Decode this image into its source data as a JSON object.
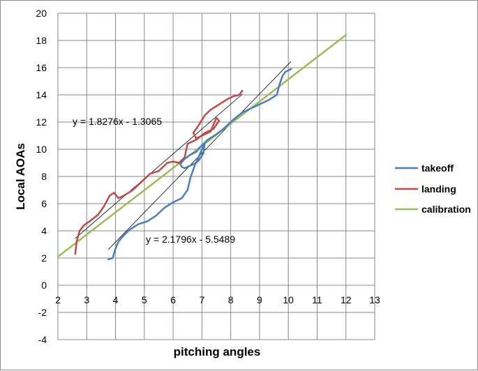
{
  "chart_data": {
    "type": "line",
    "title": "",
    "xlabel": "pitching angles",
    "ylabel": "Local AOAs",
    "xlim": [
      2,
      13
    ],
    "ylim": [
      -4,
      20
    ],
    "x_ticks": [
      2,
      3,
      4,
      5,
      6,
      7,
      8,
      9,
      10,
      11,
      12,
      13
    ],
    "y_ticks": [
      20,
      18,
      16,
      14,
      12,
      10,
      8,
      6,
      4,
      2,
      0,
      -2,
      -4
    ],
    "grid": true,
    "legend_position": "right",
    "series": [
      {
        "name": "takeoff",
        "color": "#4a7ebb",
        "points": [
          [
            3.75,
            1.9
          ],
          [
            3.9,
            2.0
          ],
          [
            4.0,
            2.7
          ],
          [
            4.1,
            3.2
          ],
          [
            4.3,
            3.7
          ],
          [
            4.5,
            4.1
          ],
          [
            4.8,
            4.5
          ],
          [
            5.1,
            4.7
          ],
          [
            5.4,
            5.1
          ],
          [
            5.7,
            5.7
          ],
          [
            6.0,
            6.1
          ],
          [
            6.3,
            6.4
          ],
          [
            6.5,
            7.0
          ],
          [
            6.6,
            7.9
          ],
          [
            6.75,
            8.8
          ],
          [
            6.9,
            9.5
          ],
          [
            7.0,
            10.0
          ],
          [
            7.1,
            10.5
          ],
          [
            7.05,
            9.7
          ],
          [
            6.9,
            9.2
          ],
          [
            6.8,
            9.0
          ],
          [
            6.6,
            8.8
          ],
          [
            6.4,
            8.6
          ],
          [
            6.3,
            8.7
          ],
          [
            6.25,
            8.9
          ],
          [
            6.4,
            9.3
          ],
          [
            6.6,
            9.6
          ],
          [
            6.8,
            9.8
          ],
          [
            7.0,
            10.3
          ],
          [
            7.2,
            10.7
          ],
          [
            7.5,
            11.1
          ],
          [
            7.8,
            11.6
          ],
          [
            8.1,
            12.2
          ],
          [
            8.4,
            12.7
          ],
          [
            8.7,
            13.0
          ],
          [
            9.0,
            13.3
          ],
          [
            9.3,
            13.6
          ],
          [
            9.6,
            14.0
          ],
          [
            9.7,
            14.8
          ],
          [
            9.8,
            15.4
          ],
          [
            9.9,
            15.7
          ],
          [
            10.1,
            15.9
          ]
        ]
      },
      {
        "name": "landing",
        "color": "#be4b48",
        "points": [
          [
            2.6,
            2.3
          ],
          [
            2.65,
            3.2
          ],
          [
            2.75,
            4.0
          ],
          [
            2.9,
            4.4
          ],
          [
            3.1,
            4.7
          ],
          [
            3.4,
            5.2
          ],
          [
            3.6,
            5.8
          ],
          [
            3.8,
            6.6
          ],
          [
            3.95,
            6.8
          ],
          [
            4.1,
            6.4
          ],
          [
            4.3,
            6.6
          ],
          [
            4.6,
            7.0
          ],
          [
            4.9,
            7.6
          ],
          [
            5.2,
            8.2
          ],
          [
            5.5,
            8.4
          ],
          [
            5.8,
            9.0
          ],
          [
            6.0,
            9.1
          ],
          [
            6.2,
            9.0
          ],
          [
            6.4,
            9.4
          ],
          [
            6.5,
            10.4
          ],
          [
            6.8,
            10.7
          ],
          [
            7.1,
            11.2
          ],
          [
            7.4,
            11.5
          ],
          [
            7.6,
            12.1
          ],
          [
            7.5,
            12.3
          ],
          [
            7.3,
            11.3
          ],
          [
            7.0,
            11.0
          ],
          [
            6.8,
            10.8
          ],
          [
            6.7,
            11.2
          ],
          [
            6.9,
            11.8
          ],
          [
            7.1,
            12.5
          ],
          [
            7.3,
            12.9
          ],
          [
            7.6,
            13.3
          ],
          [
            7.9,
            13.7
          ],
          [
            8.1,
            13.9
          ],
          [
            8.3,
            14.0
          ],
          [
            8.4,
            14.3
          ]
        ]
      },
      {
        "name": "calibration",
        "color": "#9bbb59",
        "points": [
          [
            2.0,
            2.1
          ],
          [
            12.0,
            18.4
          ]
        ]
      }
    ],
    "trendlines": [
      {
        "equation": "y = 1.8276x - 1.3065",
        "slope": 1.8276,
        "intercept": -1.3065,
        "x_range": [
          2.6,
          8.4
        ]
      },
      {
        "equation": "y = 2.1796x - 5.5489",
        "slope": 2.1796,
        "intercept": -5.5489,
        "x_range": [
          3.75,
          10.1
        ]
      }
    ]
  }
}
